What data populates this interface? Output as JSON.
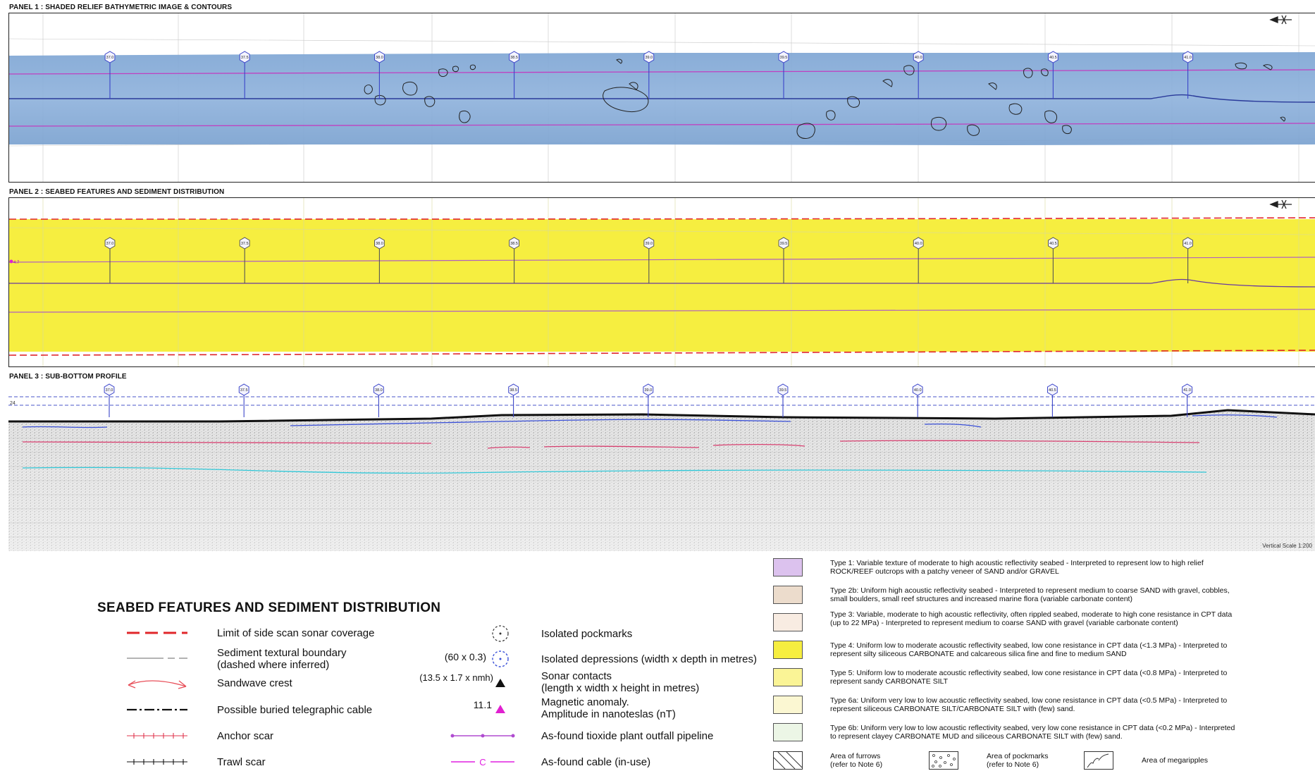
{
  "panels": {
    "panel1_title": "PANEL 1 : SHADED RELIEF BATHYMETRIC IMAGE & CONTOURS",
    "panel2_title": "PANEL 2 : SEABED FEATURES AND SEDIMENT DISTRIBUTION",
    "panel3_title": "PANEL 3 : SUB-BOTTOM PROFILE",
    "kp_markers": [
      "37.0",
      "37.5",
      "38.0",
      "38.5",
      "39.0",
      "39.5",
      "40.0",
      "40.5",
      "41.0"
    ],
    "vertical_scale": "Vertical Scale 1:200",
    "panel2_edge_value": "4.7",
    "panel3_top_depth": "24"
  },
  "legend": {
    "title": "SEABED FEATURES AND SEDIMENT DISTRIBUTION",
    "left_items": [
      "Limit of side scan sonar coverage",
      "Sediment textural boundary\n(dashed where inferred)",
      "Sandwave crest",
      "Possible buried telegraphic cable",
      "Anchor scar",
      "Trawl scar"
    ],
    "right_items": [
      "Isolated pockmarks",
      "Isolated depressions (width x depth in metres)",
      "Sonar contacts\n(length x width x height in metres)",
      "Magnetic anomaly.\nAmplitude in nanoteslas (nT)",
      "As-found tioxide plant outfall pipeline",
      "As-found cable (in-use)"
    ],
    "depression_example": "(60 x 0.3)",
    "contact_example": "(13.5 x 1.7 x nmh)",
    "magnetic_example": "11.1",
    "cable_code": "C",
    "colors": {
      "sonar_limit": "#e0262a",
      "anchor_scar": "#e0354e",
      "sandwave": "#e8505a",
      "pipeline": "#b04bd0",
      "cable": "#e020e0",
      "magnetic": "#e020d0"
    }
  },
  "sediment_types": [
    {
      "text": "Type 1: Variable texture of moderate to high acoustic reflectivity seabed - Interpreted to represent low to high relief ROCK/REEF outcrops with a patchy veneer of SAND and/or GRAVEL",
      "color": "#dcc2ee"
    },
    {
      "text": "Type 2b: Uniform high acoustic reflectivity seabed - Interpreted to represent medium to coarse SAND with gravel, cobbles, small boulders, small reef structures and increased marine flora (variable carbonate content)",
      "color": "#ecdccc"
    },
    {
      "text": "Type 3: Variable, moderate to high acoustic reflectivity, often rippled seabed, moderate to high cone resistance in CPT data (up to 22 MPa) - Interpreted to represent medium to coarse SAND with gravel (variable carbonate content)",
      "color": "#f8ece2"
    },
    {
      "text": "Type 4: Uniform low to moderate acoustic reflectivity seabed, low cone resistance in CPT data (<1.3 MPa) - Interpreted to represent silty siliceous CARBONATE and calcareous silica fine and fine to medium SAND",
      "color": "#f6ee40"
    },
    {
      "text": "Type 5: Uniform low to moderate acoustic reflectivity seabed, low cone resistance in CPT data (<0.8 MPa) - Interpreted to represent sandy CARBONATE SILT",
      "color": "#faf496"
    },
    {
      "text": "Type 6a: Uniform very low to low acoustic reflectivity seabed, low cone resistance in CPT data (<0.5 MPa) - Interpreted to represent siliceous CARBONATE SILT/CARBONATE SILT with (few) sand.",
      "color": "#fbf7d2"
    },
    {
      "text": "Type 6b: Uniform very low to low acoustic reflectivity seabed, very low cone resistance in CPT data (<0.2 MPa) - Interpreted to represent clayey CARBONATE MUD and siliceous CARBONATE SILT with (few) sand.",
      "color": "#ecf6e6"
    }
  ],
  "patterns": [
    {
      "label": "Area of furrows\n(refer to Note 6)"
    },
    {
      "label": "Area of pockmarks\n(refer to Note 6)"
    },
    {
      "label": "Area of megaripples"
    }
  ]
}
